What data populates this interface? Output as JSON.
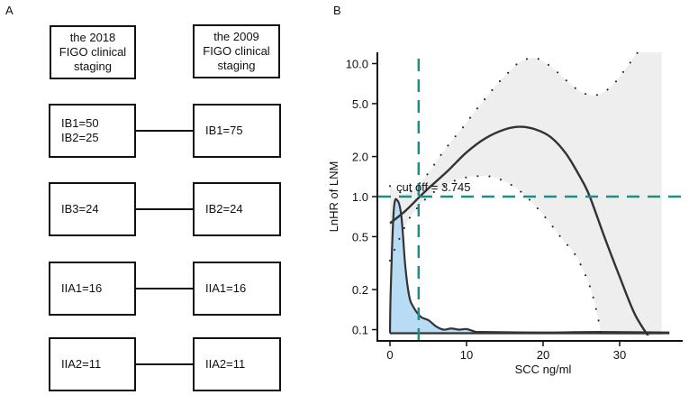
{
  "panel_a": {
    "label": "A",
    "headers": {
      "left": [
        "the 2018",
        "FIGO clinical",
        "staging"
      ],
      "right": [
        "the 2009",
        "FIGO clinical",
        "staging"
      ]
    },
    "rows": [
      {
        "left": [
          "IB1=50",
          "IB2=25"
        ],
        "right": [
          "IB1=75"
        ]
      },
      {
        "left": [
          "IB3=24"
        ],
        "right": [
          "IB2=24"
        ]
      },
      {
        "left": [
          "IIA1=16"
        ],
        "right": [
          "IIA1=16"
        ]
      },
      {
        "left": [
          "IIA2=11"
        ],
        "right": [
          "IIA2=11"
        ]
      }
    ]
  },
  "chart_data": {
    "panel_label": "B",
    "type": "line",
    "xlabel": "SCC ng/ml",
    "ylabel": "LnHR of LNM",
    "xlim": [
      -1.5,
      38
    ],
    "ylim": [
      0.08,
      13
    ],
    "yscale": "log",
    "x_ticks": [
      "0",
      "10",
      "20",
      "30"
    ],
    "x_tick_values": [
      0,
      10,
      20,
      30
    ],
    "y_ticks": [
      "10.0",
      "5.0",
      "2.0",
      "1.0",
      "0.5",
      "0.2",
      "0.1"
    ],
    "y_tick_values": [
      10,
      5,
      2,
      1,
      0.5,
      0.2,
      0.1
    ],
    "grid": false,
    "annotation": "cut off = 3.745",
    "cutoff_x": 3.745,
    "reference_y": 1.0,
    "colors": {
      "reference": "#1a8f86",
      "curve": "#333333",
      "band": "#eeeeee",
      "density": "#b9dcf5"
    },
    "series": [
      {
        "role": "hazard ratio curve",
        "style": "solid",
        "x": [
          0,
          2,
          3.745,
          5,
          7.5,
          10,
          12.5,
          15,
          17,
          19,
          21,
          23,
          25,
          26.1,
          28,
          30,
          32,
          34
        ],
        "y": [
          0.63,
          0.78,
          0.98,
          1.15,
          1.55,
          2.15,
          2.75,
          3.2,
          3.35,
          3.2,
          2.8,
          2.1,
          1.35,
          1.0,
          0.5,
          0.25,
          0.13,
          0.085
        ]
      },
      {
        "role": "upper confidence limit",
        "style": "dotted",
        "x": [
          0,
          2,
          3.5,
          5,
          6.5,
          8,
          9.5,
          11,
          12.5,
          14,
          15.5,
          17,
          19,
          21,
          23,
          25,
          27,
          29,
          31,
          33,
          35.5
        ],
        "y": [
          1.2,
          1.05,
          1.2,
          1.5,
          2.0,
          2.6,
          3.3,
          4.3,
          5.5,
          7.0,
          8.6,
          10.3,
          11.0,
          9.5,
          7.5,
          6.1,
          5.8,
          6.8,
          9.5,
          13,
          13
        ]
      },
      {
        "role": "lower confidence limit",
        "style": "dotted",
        "x": [
          0,
          1,
          2,
          3,
          5,
          7,
          9,
          11,
          13,
          15,
          17,
          19,
          21,
          22.5,
          24,
          25,
          26,
          26.6,
          27.2,
          27.6
        ],
        "y": [
          0.33,
          0.45,
          0.6,
          0.75,
          1.0,
          1.2,
          1.35,
          1.42,
          1.42,
          1.3,
          1.1,
          0.85,
          0.62,
          0.48,
          0.38,
          0.3,
          0.22,
          0.17,
          0.12,
          0.09
        ]
      },
      {
        "role": "distribution density",
        "style": "filled",
        "x": [
          0,
          0.1,
          0.5,
          1,
          1.5,
          2,
          2.5,
          3,
          4,
          5,
          6,
          7,
          8,
          9,
          10,
          11,
          12,
          20,
          27,
          36.5
        ],
        "y": [
          0.094,
          0.2,
          0.8,
          0.93,
          0.7,
          0.3,
          0.18,
          0.15,
          0.125,
          0.118,
          0.106,
          0.1,
          0.102,
          0.1,
          0.101,
          0.097,
          0.096,
          0.095,
          0.096,
          0.095
        ]
      }
    ]
  }
}
